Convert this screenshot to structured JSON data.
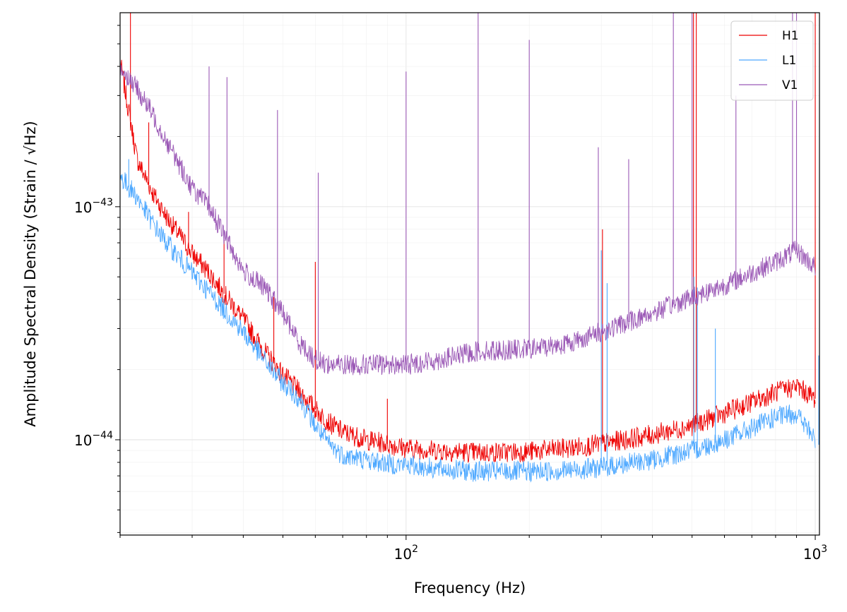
{
  "chart_data": {
    "type": "line",
    "title": "",
    "xlabel": "Frequency (Hz)",
    "ylabel": "Amplitude Spectral Density (Strain / √Hz)",
    "xscale": "log",
    "yscale": "log",
    "xlim": [
      20,
      1024
    ],
    "ylim": [
      3.9e-45,
      6.8e-43
    ],
    "grid": true,
    "legend_position": "top-right",
    "x_tick_labels": [
      {
        "value": 100,
        "base": "10",
        "exp": "2"
      },
      {
        "value": 1000,
        "base": "10",
        "exp": "3"
      }
    ],
    "y_tick_labels": [
      {
        "value": 1e-44,
        "base": "10",
        "exp": "−44"
      },
      {
        "value": 1e-43,
        "base": "10",
        "exp": "−43"
      }
    ],
    "series": [
      {
        "name": "H1",
        "color": "#ee0000",
        "points": [
          [
            20,
            4.2e-43
          ],
          [
            22,
            1.6e-43
          ],
          [
            24,
            1.15e-43
          ],
          [
            26,
            9e-44
          ],
          [
            28,
            7.5e-44
          ],
          [
            30,
            6.3e-44
          ],
          [
            33,
            5.2e-44
          ],
          [
            36,
            4.2e-44
          ],
          [
            40,
            3.3e-44
          ],
          [
            45,
            2.4e-44
          ],
          [
            50,
            1.9e-44
          ],
          [
            55,
            1.6e-44
          ],
          [
            60,
            1.35e-44
          ],
          [
            65,
            1.18e-44
          ],
          [
            70,
            1.08e-44
          ],
          [
            80,
            1e-44
          ],
          [
            90,
            9.6e-45
          ],
          [
            100,
            9.2e-45
          ],
          [
            120,
            9e-45
          ],
          [
            150,
            8.8e-45
          ],
          [
            200,
            8.9e-45
          ],
          [
            250,
            9.2e-45
          ],
          [
            300,
            9.6e-45
          ],
          [
            400,
            1.05e-44
          ],
          [
            500,
            1.15e-44
          ],
          [
            600,
            1.3e-44
          ],
          [
            700,
            1.45e-44
          ],
          [
            800,
            1.6e-44
          ],
          [
            900,
            1.7e-44
          ],
          [
            1000,
            1.5e-44
          ]
        ],
        "lines": [
          [
            21.2,
            8e-43
          ],
          [
            23.5,
            2.3e-43
          ],
          [
            29.4,
            9.5e-44
          ],
          [
            35.9,
            7.2e-44
          ],
          [
            47.5,
            4.1e-44
          ],
          [
            60,
            5.8e-44
          ],
          [
            90,
            1.5e-44
          ],
          [
            302,
            8e-44
          ],
          [
            504,
            6.8e-43
          ],
          [
            512,
            6.8e-43
          ],
          [
            1000,
            6.8e-43
          ]
        ]
      },
      {
        "name": "L1",
        "color": "#4da8ff",
        "points": [
          [
            20,
            1.35e-43
          ],
          [
            22,
            1.1e-43
          ],
          [
            24,
            8.5e-44
          ],
          [
            26,
            7e-44
          ],
          [
            28,
            6e-44
          ],
          [
            30,
            5.2e-44
          ],
          [
            33,
            4.3e-44
          ],
          [
            36,
            3.6e-44
          ],
          [
            40,
            2.9e-44
          ],
          [
            45,
            2.2e-44
          ],
          [
            50,
            1.75e-44
          ],
          [
            55,
            1.5e-44
          ],
          [
            60,
            1.15e-44
          ],
          [
            65,
            9.5e-45
          ],
          [
            70,
            8.6e-45
          ],
          [
            80,
            8.2e-45
          ],
          [
            90,
            7.9e-45
          ],
          [
            100,
            7.8e-45
          ],
          [
            120,
            7.5e-45
          ],
          [
            150,
            7.3e-45
          ],
          [
            200,
            7.3e-45
          ],
          [
            250,
            7.4e-45
          ],
          [
            300,
            7.6e-45
          ],
          [
            400,
            8.2e-45
          ],
          [
            500,
            9e-45
          ],
          [
            600,
            1e-44
          ],
          [
            700,
            1.12e-44
          ],
          [
            800,
            1.25e-44
          ],
          [
            900,
            1.3e-44
          ],
          [
            1000,
            1e-44
          ]
        ],
        "lines": [
          [
            21,
            1.6e-43
          ],
          [
            300,
            6.5e-44
          ],
          [
            310,
            4.7e-44
          ],
          [
            505,
            5e-44
          ],
          [
            515,
            4.5e-44
          ],
          [
            570,
            3e-44
          ],
          [
            1020,
            2.3e-44
          ]
        ]
      },
      {
        "name": "V1",
        "color": "#9b59b6",
        "points": [
          [
            20,
            4e-43
          ],
          [
            22,
            3.2e-43
          ],
          [
            24,
            2.5e-43
          ],
          [
            26,
            1.9e-43
          ],
          [
            28,
            1.5e-43
          ],
          [
            30,
            1.2e-43
          ],
          [
            33,
            1e-43
          ],
          [
            36,
            7.5e-44
          ],
          [
            40,
            5.3e-44
          ],
          [
            45,
            4.5e-44
          ],
          [
            50,
            3.5e-44
          ],
          [
            55,
            2.6e-44
          ],
          [
            60,
            2.2e-44
          ],
          [
            65,
            2.1e-44
          ],
          [
            70,
            2.1e-44
          ],
          [
            80,
            2.1e-44
          ],
          [
            90,
            2.1e-44
          ],
          [
            100,
            2.1e-44
          ],
          [
            120,
            2.2e-44
          ],
          [
            150,
            2.4e-44
          ],
          [
            200,
            2.45e-44
          ],
          [
            250,
            2.6e-44
          ],
          [
            300,
            2.9e-44
          ],
          [
            400,
            3.5e-44
          ],
          [
            500,
            4.1e-44
          ],
          [
            600,
            4.6e-44
          ],
          [
            700,
            5.2e-44
          ],
          [
            800,
            5.8e-44
          ],
          [
            900,
            6.5e-44
          ],
          [
            1000,
            5.5e-44
          ]
        ],
        "lines": [
          [
            33,
            4e-43
          ],
          [
            36.5,
            3.6e-43
          ],
          [
            48.5,
            2.6e-43
          ],
          [
            61,
            1.4e-43
          ],
          [
            100,
            3.8e-43
          ],
          [
            150,
            6.8e-43
          ],
          [
            200,
            5.2e-43
          ],
          [
            295,
            1.8e-43
          ],
          [
            350,
            1.6e-43
          ],
          [
            450,
            6.8e-43
          ],
          [
            500,
            6.8e-43
          ],
          [
            640,
            3e-43
          ],
          [
            880,
            6.8e-43
          ],
          [
            900,
            6.8e-43
          ]
        ]
      }
    ]
  }
}
